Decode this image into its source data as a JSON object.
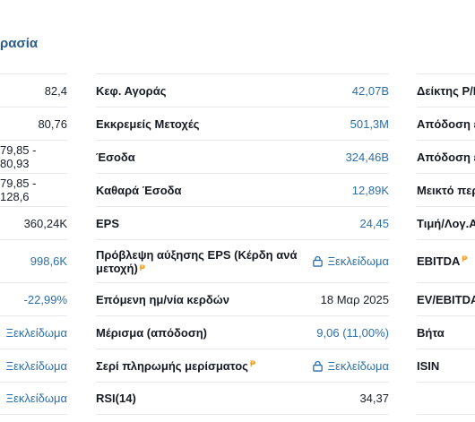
{
  "page": {
    "title": "ρασία"
  },
  "col1": [
    {
      "value": "82,4"
    },
    {
      "value": "80,76"
    },
    {
      "value": "79,85 - 80,93"
    },
    {
      "value": "79,85 - 128,6"
    },
    {
      "value": "360,24K"
    },
    {
      "value": "998,6K",
      "link": true
    },
    {
      "value": "-22,99%",
      "link": true
    },
    {
      "value": "Ξεκλείδωμα",
      "link": true
    },
    {
      "value": "Ξεκλείδωμα",
      "link": true
    },
    {
      "value": "Ξεκλείδωμα",
      "link": true
    }
  ],
  "col2": [
    {
      "label": "Κεφ. Αγοράς",
      "value": "42,07B"
    },
    {
      "label": "Εκκρεμείς Μετοχές",
      "value": "501,3M"
    },
    {
      "label": "Έσοδα",
      "value": "324,46B"
    },
    {
      "label": "Καθαρά Έσοδα",
      "value": "12,89K"
    },
    {
      "label": "EPS",
      "value": "24,45"
    },
    {
      "label": "Πρόβλεψη αύξησης EPS (Κέρδη ανά μετοχή)",
      "value": "Ξεκλείδωμα",
      "locked": true,
      "badge": true
    },
    {
      "label": "Επόμενη ημ/νία κερδών",
      "value": "18 Μαρ 2025"
    },
    {
      "label": "Μέρισμα (απόδοση)",
      "value": "9,06 (11,00%)"
    },
    {
      "label": "Σερί πληρωμής μερίσματος",
      "value": "Ξεκλείδωμα",
      "locked": true,
      "badge": true
    },
    {
      "label": "RSI(14)",
      "value": "34,37"
    }
  ],
  "col3": [
    {
      "label": "Δείκτης P/E"
    },
    {
      "label": "Απόδοση επ"
    },
    {
      "label": "Απόδοση επ"
    },
    {
      "label": "Μεικτό περ"
    },
    {
      "label": "Τιμή/Λογ.Α"
    },
    {
      "label": "EBITDA",
      "badge": true
    },
    {
      "label": "EV/EBITDA"
    },
    {
      "label": "Βήτα"
    },
    {
      "label": "ISIN"
    },
    {
      "label": ""
    }
  ],
  "colors": {
    "link": "#2d6ea8",
    "badge": "#f39c1f",
    "title": "#2b5d8a"
  }
}
